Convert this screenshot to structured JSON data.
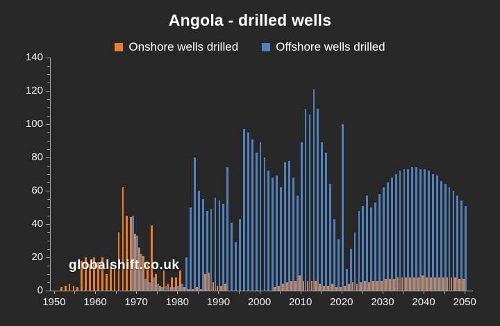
{
  "chart_data": {
    "type": "bar",
    "title": "Angola - drilled wells",
    "watermark": "globalshift.co.uk",
    "legend_position": "top",
    "grid": false,
    "background_color": "#272727",
    "axis_color": "#a6a6a6",
    "text_color": "#f2f2f2",
    "ylim": [
      0,
      140
    ],
    "y_major_step": 20,
    "y_minor_step": 5,
    "x_tick_step": 5,
    "x_label_step": 10,
    "y_tick_labels": [
      "0",
      "20",
      "40",
      "60",
      "80",
      "100",
      "120",
      "140"
    ],
    "x_tick_labels": [
      "1950",
      "1960",
      "1970",
      "1980",
      "1990",
      "2000",
      "2010",
      "2020",
      "2030",
      "2040",
      "2050"
    ],
    "categories": [
      1950,
      1951,
      1952,
      1953,
      1954,
      1955,
      1956,
      1957,
      1958,
      1959,
      1960,
      1961,
      1962,
      1963,
      1964,
      1965,
      1966,
      1967,
      1968,
      1969,
      1970,
      1971,
      1972,
      1973,
      1974,
      1975,
      1976,
      1977,
      1978,
      1979,
      1980,
      1981,
      1982,
      1983,
      1984,
      1985,
      1986,
      1987,
      1988,
      1989,
      1990,
      1991,
      1992,
      1993,
      1994,
      1995,
      1996,
      1997,
      1998,
      1999,
      2000,
      2001,
      2002,
      2003,
      2004,
      2005,
      2006,
      2007,
      2008,
      2009,
      2010,
      2011,
      2012,
      2013,
      2014,
      2015,
      2016,
      2017,
      2018,
      2019,
      2020,
      2021,
      2022,
      2023,
      2024,
      2025,
      2026,
      2027,
      2028,
      2029,
      2030,
      2031,
      2032,
      2033,
      2034,
      2035,
      2036,
      2037,
      2038,
      2039,
      2040,
      2041,
      2042,
      2043,
      2044,
      2045,
      2046,
      2047,
      2048,
      2049,
      2050
    ],
    "series": [
      {
        "name": "Onshore wells drilled",
        "color": "#e87d2b",
        "values": [
          0,
          0,
          2,
          3,
          4,
          3,
          2,
          18,
          20,
          16,
          20,
          17,
          20,
          10,
          15,
          13,
          35,
          62,
          45,
          44,
          34,
          26,
          21,
          16,
          39,
          10,
          3,
          12,
          4,
          8,
          8,
          12,
          2,
          1,
          1,
          2,
          1,
          10,
          11,
          5,
          3,
          3,
          4,
          0,
          0,
          0,
          0,
          0,
          0,
          0,
          0,
          0,
          0,
          0,
          2,
          3,
          4,
          5,
          6,
          6,
          9,
          6,
          6,
          6,
          6,
          4,
          3,
          3,
          4,
          2,
          2,
          3,
          4,
          5,
          4,
          5,
          6,
          5,
          6,
          6,
          6,
          7,
          7,
          7,
          8,
          8,
          8,
          8,
          8,
          8,
          9,
          8,
          8,
          8,
          8,
          8,
          8,
          8,
          8,
          7,
          7
        ]
      },
      {
        "name": "Offshore wells drilled",
        "color": "#4f81bd",
        "values": [
          0,
          0,
          0,
          0,
          0,
          0,
          0,
          0,
          0,
          0,
          0,
          0,
          0,
          0,
          0,
          0,
          0,
          0,
          0,
          45,
          33,
          22,
          7,
          5,
          8,
          4,
          2,
          3,
          2,
          2,
          3,
          4,
          20,
          50,
          80,
          60,
          55,
          48,
          49,
          56,
          54,
          52,
          74,
          41,
          29,
          43,
          97,
          95,
          91,
          83,
          89,
          80,
          72,
          68,
          69,
          62,
          77,
          78,
          68,
          57,
          89,
          109,
          106,
          121,
          109,
          89,
          83,
          64,
          43,
          31,
          100,
          13,
          25,
          35,
          48,
          51,
          57,
          50,
          53,
          58,
          62,
          65,
          68,
          70,
          72,
          73,
          73,
          74,
          74,
          73,
          73,
          72,
          70,
          69,
          66,
          64,
          62,
          60,
          57,
          54,
          51
        ]
      }
    ]
  }
}
